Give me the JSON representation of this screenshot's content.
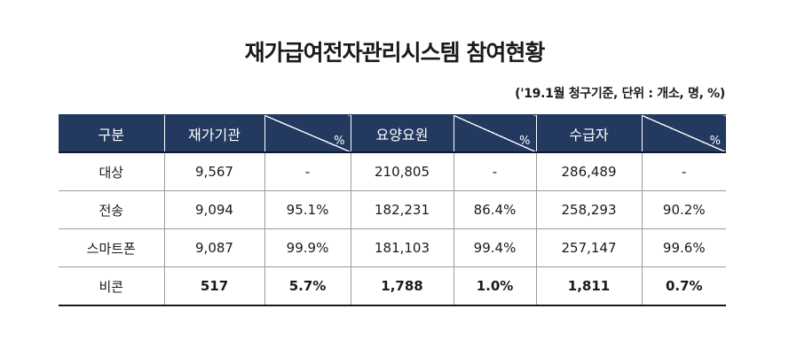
{
  "title": "재가급여전자관리시스템 참여현황",
  "unit_note": "('19.1월 청구기준, 단위 : 개소, 명, %)",
  "table": {
    "headers": [
      "구분",
      "재가기관",
      "%",
      "요양요원",
      "%",
      "수급자",
      "%"
    ],
    "rows": [
      [
        "대상",
        "9,567",
        "-",
        "210,805",
        "-",
        "286,489",
        "-"
      ],
      [
        "전송",
        "9,094",
        "95.1%",
        "182,231",
        "86.4%",
        "258,293",
        "90.2%"
      ],
      [
        "스마트폰",
        "9,087",
        "99.9%",
        "181,103",
        "99.4%",
        "257,147",
        "99.6%"
      ],
      [
        "비콘",
        "517",
        "5.7%",
        "1,788",
        "1.0%",
        "1,811",
        "0.7%"
      ]
    ]
  }
}
